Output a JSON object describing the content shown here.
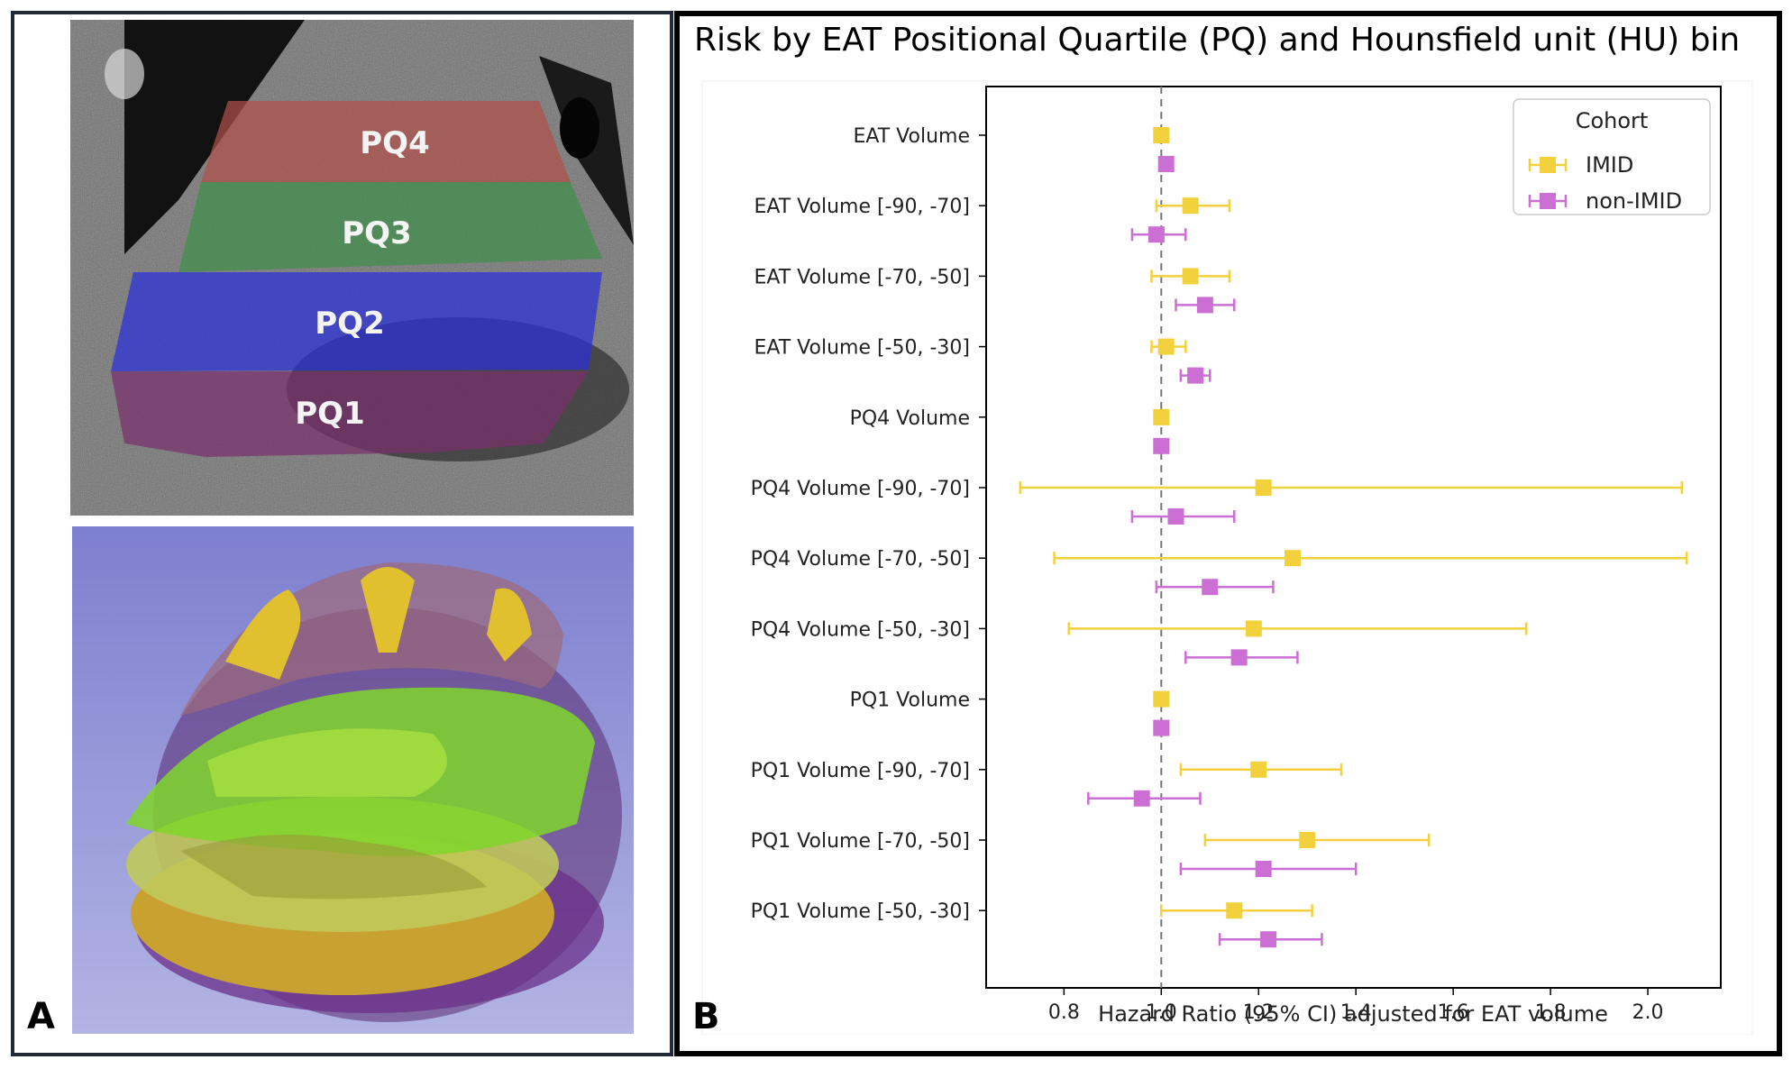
{
  "panel_a": {
    "letter": "A",
    "quartile_labels": [
      "PQ4",
      "PQ3",
      "PQ2",
      "PQ1"
    ],
    "colors": {
      "pq4": "#b0504a",
      "pq3": "#3f8f4a",
      "pq2": "#2a2fd8",
      "pq1": "#7a2f6e"
    }
  },
  "panel_b": {
    "letter": "B"
  },
  "chart_data": {
    "type": "forest",
    "title": "Risk by EAT Positional Quartile (PQ) and Hounsfield unit (HU) bin",
    "xlabel": "Hazard Ratio (95% CI) adjusted for EAT volume",
    "xlim": [
      0.64,
      2.15
    ],
    "xticks": [
      0.8,
      1.0,
      1.2,
      1.4,
      1.6,
      1.8,
      2.0
    ],
    "xtick_labels": [
      "0.8",
      "1.0",
      "1.2",
      "1.4",
      "1.6",
      "1.8",
      "2.0"
    ],
    "reference_line": 1.0,
    "categories": [
      "EAT Volume",
      "EAT Volume [-90, -70]",
      "EAT Volume [-70, -50]",
      "EAT Volume [-50, -30]",
      "PQ4 Volume",
      "PQ4 Volume [-90, -70]",
      "PQ4 Volume [-70, -50]",
      "PQ4 Volume [-50, -30]",
      "PQ1 Volume",
      "PQ1 Volume [-90, -70]",
      "PQ1 Volume [-70, -50]",
      "PQ1 Volume [-50, -30]"
    ],
    "series": [
      {
        "name": "IMID",
        "color": "#f2d13c",
        "hr": [
          1.0,
          1.06,
          1.06,
          1.01,
          1.0,
          1.21,
          1.27,
          1.19,
          1.0,
          1.2,
          1.3,
          1.15
        ],
        "lower": [
          1.0,
          0.99,
          0.98,
          0.98,
          1.0,
          0.71,
          0.78,
          0.81,
          1.0,
          1.04,
          1.09,
          1.0
        ],
        "upper": [
          1.0,
          1.14,
          1.14,
          1.05,
          1.0,
          2.07,
          2.08,
          1.75,
          1.0,
          1.37,
          1.55,
          1.31
        ]
      },
      {
        "name": "non-IMID",
        "color": "#cc6fd4",
        "hr": [
          1.01,
          0.99,
          1.09,
          1.07,
          1.0,
          1.03,
          1.1,
          1.16,
          1.0,
          0.96,
          1.21,
          1.22
        ],
        "lower": [
          1.01,
          0.94,
          1.03,
          1.04,
          1.0,
          0.94,
          0.99,
          1.05,
          1.0,
          0.85,
          1.04,
          1.12
        ],
        "upper": [
          1.01,
          1.05,
          1.15,
          1.1,
          1.0,
          1.15,
          1.23,
          1.28,
          1.0,
          1.08,
          1.4,
          1.33
        ]
      }
    ],
    "legend": {
      "title": "Cohort",
      "entries": [
        "IMID",
        "non-IMID"
      ],
      "position": "top-right"
    }
  }
}
